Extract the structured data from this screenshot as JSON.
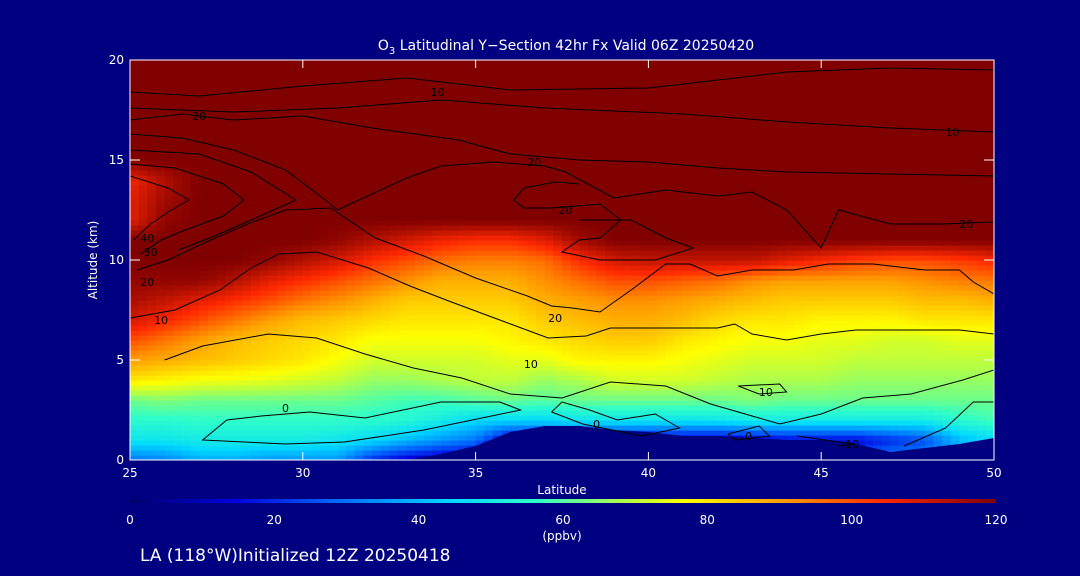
{
  "chart_data": {
    "type": "heatmap",
    "title_prefix": "O",
    "title_subscript": "3",
    "title_rest": " Latitudinal Y−Section 42hr  Fx Valid 06Z 20250420",
    "xlabel": "Latitude",
    "ylabel": "Altitude (km)",
    "xlim": [
      25,
      50
    ],
    "ylim": [
      0,
      20
    ],
    "x_ticks": [
      25,
      30,
      35,
      40,
      45,
      50
    ],
    "y_ticks": [
      0,
      5,
      10,
      15,
      20
    ],
    "colorbar": {
      "label": "(ppbv)",
      "range": [
        0,
        120
      ],
      "ticks": [
        0,
        20,
        40,
        60,
        80,
        100,
        120
      ]
    },
    "footer": "LA (118°W)Initialized 12Z 20250418",
    "ozone_ppbv_grid": {
      "lat": [
        25,
        26,
        27,
        28,
        29,
        30,
        31,
        32,
        33,
        34,
        35,
        36,
        37,
        38,
        39,
        40,
        41,
        42,
        43,
        44,
        45,
        46,
        47,
        48,
        49,
        50
      ],
      "alt": [
        0,
        1,
        2,
        3,
        4,
        5,
        6,
        7,
        8,
        9,
        10,
        11,
        12,
        13,
        14,
        15,
        16,
        17,
        18,
        19,
        20
      ],
      "values": [
        [
          30,
          32,
          38,
          38,
          35,
          35,
          35,
          20,
          12,
          8,
          5,
          3,
          3,
          3,
          5,
          10,
          15,
          15,
          10,
          10,
          20,
          30,
          35,
          35,
          40,
          42
        ],
        [
          48,
          48,
          50,
          50,
          50,
          50,
          48,
          45,
          40,
          35,
          30,
          10,
          10,
          10,
          10,
          10,
          10,
          10,
          12,
          15,
          15,
          15,
          20,
          25,
          40,
          45
        ],
        [
          55,
          55,
          56,
          56,
          56,
          56,
          56,
          55,
          54,
          50,
          45,
          45,
          45,
          48,
          48,
          48,
          48,
          48,
          50,
          50,
          50,
          50,
          50,
          50,
          55,
          58
        ],
        [
          62,
          64,
          62,
          62,
          62,
          62,
          62,
          60,
          58,
          58,
          60,
          62,
          60,
          62,
          62,
          62,
          62,
          62,
          64,
          62,
          62,
          62,
          62,
          62,
          62,
          62
        ],
        [
          80,
          78,
          76,
          75,
          74,
          72,
          70,
          66,
          66,
          68,
          70,
          70,
          66,
          68,
          72,
          72,
          72,
          70,
          68,
          68,
          68,
          66,
          66,
          66,
          66,
          66
        ],
        [
          90,
          88,
          86,
          84,
          82,
          80,
          76,
          72,
          72,
          72,
          72,
          74,
          74,
          78,
          78,
          78,
          76,
          74,
          72,
          72,
          72,
          70,
          70,
          70,
          70,
          70
        ],
        [
          100,
          95,
          90,
          86,
          84,
          82,
          80,
          76,
          76,
          76,
          76,
          78,
          80,
          82,
          84,
          84,
          80,
          78,
          76,
          76,
          74,
          74,
          72,
          72,
          74,
          74
        ],
        [
          110,
          105,
          100,
          95,
          90,
          86,
          84,
          82,
          80,
          80,
          80,
          80,
          84,
          86,
          88,
          88,
          86,
          82,
          80,
          80,
          78,
          78,
          78,
          80,
          80,
          80
        ],
        [
          115,
          112,
          108,
          104,
          100,
          95,
          92,
          88,
          84,
          84,
          84,
          84,
          88,
          90,
          92,
          92,
          90,
          88,
          86,
          84,
          84,
          84,
          84,
          86,
          86,
          88
        ],
        [
          118,
          118,
          118,
          114,
          108,
          104,
          100,
          96,
          92,
          88,
          88,
          88,
          92,
          96,
          100,
          100,
          98,
          96,
          92,
          90,
          90,
          90,
          90,
          92,
          94,
          95
        ],
        [
          120,
          120,
          120,
          120,
          118,
          114,
          110,
          104,
          100,
          96,
          94,
          94,
          96,
          104,
          110,
          112,
          112,
          112,
          112,
          108,
          105,
          102,
          100,
          100,
          102,
          105
        ],
        [
          120,
          120,
          120,
          120,
          120,
          120,
          118,
          114,
          110,
          106,
          104,
          104,
          108,
          116,
          120,
          120,
          120,
          120,
          120,
          120,
          120,
          120,
          120,
          120,
          120,
          120
        ],
        [
          108,
          118,
          120,
          120,
          120,
          120,
          120,
          120,
          120,
          120,
          120,
          120,
          120,
          120,
          120,
          120,
          120,
          120,
          120,
          120,
          120,
          120,
          120,
          120,
          120,
          120
        ],
        [
          108,
          116,
          120,
          120,
          120,
          120,
          120,
          120,
          120,
          120,
          120,
          120,
          120,
          120,
          120,
          120,
          120,
          120,
          120,
          120,
          120,
          120,
          120,
          120,
          120,
          120
        ],
        [
          106,
          114,
          120,
          120,
          120,
          120,
          120,
          120,
          120,
          120,
          120,
          120,
          120,
          120,
          120,
          120,
          120,
          120,
          120,
          120,
          120,
          120,
          120,
          120,
          120,
          120
        ],
        [
          120,
          120,
          120,
          120,
          120,
          120,
          120,
          120,
          120,
          120,
          120,
          120,
          120,
          120,
          120,
          120,
          120,
          120,
          120,
          120,
          120,
          120,
          120,
          120,
          120,
          120
        ],
        [
          120,
          120,
          120,
          120,
          120,
          120,
          120,
          120,
          120,
          120,
          120,
          120,
          120,
          120,
          120,
          120,
          120,
          120,
          120,
          120,
          120,
          120,
          120,
          120,
          120,
          120
        ],
        [
          120,
          120,
          120,
          120,
          120,
          120,
          120,
          120,
          120,
          120,
          120,
          120,
          120,
          120,
          120,
          120,
          120,
          120,
          120,
          120,
          120,
          120,
          120,
          120,
          120,
          120
        ],
        [
          120,
          120,
          120,
          120,
          120,
          120,
          120,
          120,
          120,
          120,
          120,
          120,
          120,
          120,
          120,
          120,
          120,
          120,
          120,
          120,
          120,
          120,
          120,
          120,
          120,
          120
        ],
        [
          120,
          120,
          120,
          120,
          120,
          120,
          120,
          120,
          120,
          120,
          120,
          120,
          120,
          120,
          120,
          120,
          120,
          120,
          120,
          120,
          120,
          120,
          120,
          120,
          120,
          120
        ],
        [
          120,
          120,
          120,
          120,
          120,
          120,
          120,
          120,
          120,
          120,
          120,
          120,
          120,
          120,
          120,
          120,
          120,
          120,
          120,
          120,
          120,
          120,
          120,
          120,
          120,
          120
        ]
      ]
    },
    "terrain": {
      "lat": [
        25,
        26,
        27,
        28,
        29,
        30,
        31,
        32,
        32.5,
        33,
        34,
        35,
        36,
        37,
        38,
        39,
        40,
        41,
        42,
        43,
        44,
        45,
        46,
        47,
        48,
        49,
        50
      ],
      "alt": [
        0,
        0,
        0,
        0,
        0,
        0,
        0,
        0,
        0,
        0,
        0.3,
        0.7,
        1.4,
        1.7,
        1.7,
        1.5,
        1.4,
        1.2,
        1.2,
        1.1,
        1.0,
        1.0,
        0.8,
        0.4,
        0.6,
        0.8,
        1.1
      ]
    },
    "contours": [
      {
        "label": "10",
        "x": [
          25,
          27,
          30,
          33,
          36,
          40,
          44,
          47,
          50
        ],
        "y": [
          18.4,
          18.2,
          18.7,
          19.1,
          18.5,
          18.6,
          19.4,
          19.6,
          19.5
        ]
      },
      {
        "label": "10",
        "x": [
          25,
          28,
          31,
          34,
          37,
          41,
          44,
          47,
          50
        ],
        "y": [
          17.6,
          17.4,
          17.6,
          18.0,
          17.6,
          17.3,
          16.9,
          16.6,
          16.4
        ]
      },
      {
        "label": "20",
        "x": [
          25,
          26.5,
          28,
          30,
          32,
          34.5,
          36,
          38,
          40,
          42,
          44,
          47,
          50
        ],
        "y": [
          17.0,
          17.3,
          17.0,
          17.2,
          16.6,
          16.0,
          15.3,
          15.0,
          14.9,
          14.6,
          14.4,
          14.3,
          14.2
        ]
      },
      {
        "label": "20",
        "x": [
          25,
          26.5,
          28,
          29.5,
          30.5,
          31,
          33,
          34,
          35.5,
          37,
          37.6,
          39,
          40.5,
          42,
          43,
          44,
          45,
          45.5,
          47,
          48.5,
          50
        ],
        "y": [
          16.3,
          16.1,
          15.5,
          14.5,
          13.2,
          12.5,
          14.1,
          14.7,
          14.9,
          14.7,
          14.4,
          13.1,
          13.5,
          13.2,
          13.4,
          12.5,
          10.6,
          12.5,
          11.8,
          11.8,
          11.9
        ]
      },
      {
        "label": "20",
        "x": [
          25,
          27,
          28.5,
          29.8,
          28.5,
          27.3,
          26.4
        ],
        "y": [
          15.5,
          15.3,
          14.4,
          13.0,
          12.0,
          11.1,
          10.5
        ]
      },
      {
        "label": "20",
        "x": [
          25,
          26.3,
          27.7,
          28.3,
          27.7,
          26.6,
          25.9,
          25.3
        ],
        "y": [
          14.8,
          14.6,
          13.8,
          13.0,
          12.2,
          11.5,
          11.0,
          10.3
        ]
      },
      {
        "label": "30",
        "x": [
          25,
          26.1,
          26.7,
          26.1,
          25.6,
          25.1
        ],
        "y": [
          14.2,
          13.6,
          13.0,
          12.4,
          11.8,
          11.0
        ]
      },
      {
        "label": "20",
        "x": [
          38,
          39.5,
          40.5,
          41.3,
          40.2,
          38.6,
          37.5,
          38,
          38.6,
          39.2,
          38.6,
          37.2,
          36.4,
          36.1,
          36.4,
          37.3,
          38
        ],
        "y": [
          12.0,
          12.0,
          11.1,
          10.6,
          10.0,
          10.0,
          10.4,
          11.0,
          11.1,
          12.0,
          12.8,
          12.6,
          12.6,
          13.0,
          13.6,
          13.9,
          13.8
        ]
      },
      {
        "label": "20",
        "x": [
          25.2,
          26.1,
          27.2,
          28.4,
          29.5,
          30.8,
          32.1,
          33.5,
          35,
          36.5,
          37.2,
          37.8,
          38.6,
          39.5,
          40.5,
          41.2,
          42,
          43,
          44.2,
          45.2,
          46.5,
          48,
          49,
          49.4,
          50
        ],
        "y": [
          9.5,
          10.0,
          10.9,
          11.8,
          12.5,
          12.6,
          11.1,
          10.2,
          9.1,
          8.2,
          7.7,
          7.6,
          7.4,
          8.5,
          9.8,
          9.8,
          9.2,
          9.5,
          9.5,
          9.8,
          9.8,
          9.5,
          9.5,
          8.9,
          8.3
        ]
      },
      {
        "label": "10",
        "x": [
          25,
          26.3,
          27.6,
          28.5,
          29.3,
          30.4,
          31.9,
          33.1,
          34.3,
          35.7,
          37.1,
          38.2,
          38.9,
          40.6,
          42,
          42.5,
          43,
          44,
          45,
          46,
          47,
          48,
          49,
          50
        ],
        "y": [
          7.1,
          7.5,
          8.5,
          9.6,
          10.3,
          10.4,
          9.6,
          8.7,
          7.9,
          7.0,
          6.1,
          6.2,
          6.6,
          6.6,
          6.6,
          6.8,
          6.3,
          6.0,
          6.3,
          6.5,
          6.5,
          6.5,
          6.5,
          6.3
        ]
      },
      {
        "label": "10",
        "x": [
          26,
          27.1,
          29,
          30.4,
          31.8,
          33.2,
          34.6,
          36,
          37.5,
          38.9,
          40.5,
          41.8,
          42.8,
          43.8,
          45,
          46.2,
          47.6,
          49.1,
          50
        ],
        "y": [
          5.0,
          5.7,
          6.3,
          6.1,
          5.3,
          4.6,
          4.1,
          3.3,
          3.1,
          3.9,
          3.7,
          2.8,
          2.3,
          1.8,
          2.3,
          3.1,
          3.3,
          4.0,
          4.5
        ]
      },
      {
        "label": "10",
        "x": [
          42.6,
          43.8,
          44,
          43.2,
          42.6
        ],
        "y": [
          3.7,
          3.8,
          3.4,
          3.3,
          3.7
        ]
      },
      {
        "label": "0",
        "x": [
          27.8,
          28.8,
          30.2,
          31.8,
          32.9,
          34,
          35.7,
          36.3,
          33.5,
          31.2,
          29.5,
          28.3,
          27.1,
          27.8
        ],
        "y": [
          2.0,
          2.2,
          2.4,
          2.1,
          2.5,
          2.9,
          2.9,
          2.5,
          1.5,
          0.9,
          0.8,
          0.9,
          1.0,
          2.0
        ]
      },
      {
        "label": "0",
        "x": [
          37.2,
          37.5,
          38.3,
          39.1,
          40.2,
          40.9,
          39.8,
          38.1,
          37.2
        ],
        "y": [
          2.4,
          2.9,
          2.5,
          2.0,
          2.3,
          1.6,
          1.2,
          1.8,
          2.4
        ]
      },
      {
        "label": "0",
        "x": [
          42.3,
          43.2,
          43.5,
          42.5,
          42.3
        ],
        "y": [
          1.3,
          1.7,
          1.2,
          1.0,
          1.3
        ]
      },
      {
        "label": "10",
        "x": [
          44.3,
          45.1,
          46,
          45.5
        ],
        "y": [
          1.2,
          1.0,
          0.8,
          0.7
        ]
      },
      {
        "label": "0",
        "x": [
          47.4,
          48.6,
          49.4,
          50
        ],
        "y": [
          0.7,
          1.6,
          2.9,
          2.9
        ]
      }
    ],
    "contour_labels": [
      {
        "text": "10",
        "x": 33.9,
        "y": 18.4
      },
      {
        "text": "10",
        "x": 48.8,
        "y": 16.4
      },
      {
        "text": "20",
        "x": 27.0,
        "y": 17.2
      },
      {
        "text": "20",
        "x": 36.7,
        "y": 14.9
      },
      {
        "text": "20",
        "x": 37.6,
        "y": 12.5
      },
      {
        "text": "20",
        "x": 49.2,
        "y": 11.8
      },
      {
        "text": "40",
        "x": 25.5,
        "y": 11.1
      },
      {
        "text": "30",
        "x": 25.6,
        "y": 10.4
      },
      {
        "text": "20",
        "x": 25.5,
        "y": 8.9
      },
      {
        "text": "20",
        "x": 37.3,
        "y": 7.1
      },
      {
        "text": "10",
        "x": 25.9,
        "y": 7.0
      },
      {
        "text": "10",
        "x": 36.6,
        "y": 4.8
      },
      {
        "text": "10",
        "x": 43.4,
        "y": 3.4
      },
      {
        "text": "0",
        "x": 29.5,
        "y": 2.6
      },
      {
        "text": "0",
        "x": 38.5,
        "y": 1.8
      },
      {
        "text": "0",
        "x": 42.9,
        "y": 1.2
      },
      {
        "text": "10",
        "x": 45.9,
        "y": 0.8
      }
    ]
  }
}
